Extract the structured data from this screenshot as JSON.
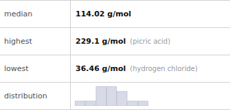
{
  "chart_data": [
    {
      "type": "table",
      "rows": [
        {
          "label": "median",
          "value": "114.02 g/mol"
        },
        {
          "label": "highest",
          "value": "229.1 g/mol",
          "note": "(picric acid)"
        },
        {
          "label": "lowest",
          "value": "36.46 g/mol",
          "note": "(hydrogen chloride)"
        },
        {
          "label": "distribution"
        }
      ]
    },
    {
      "type": "bar",
      "values": [
        1,
        1,
        4,
        4,
        3,
        1,
        1
      ],
      "color": "#d8dae8",
      "ylim": [
        0,
        4.4
      ],
      "tick_labels": false
    }
  ]
}
